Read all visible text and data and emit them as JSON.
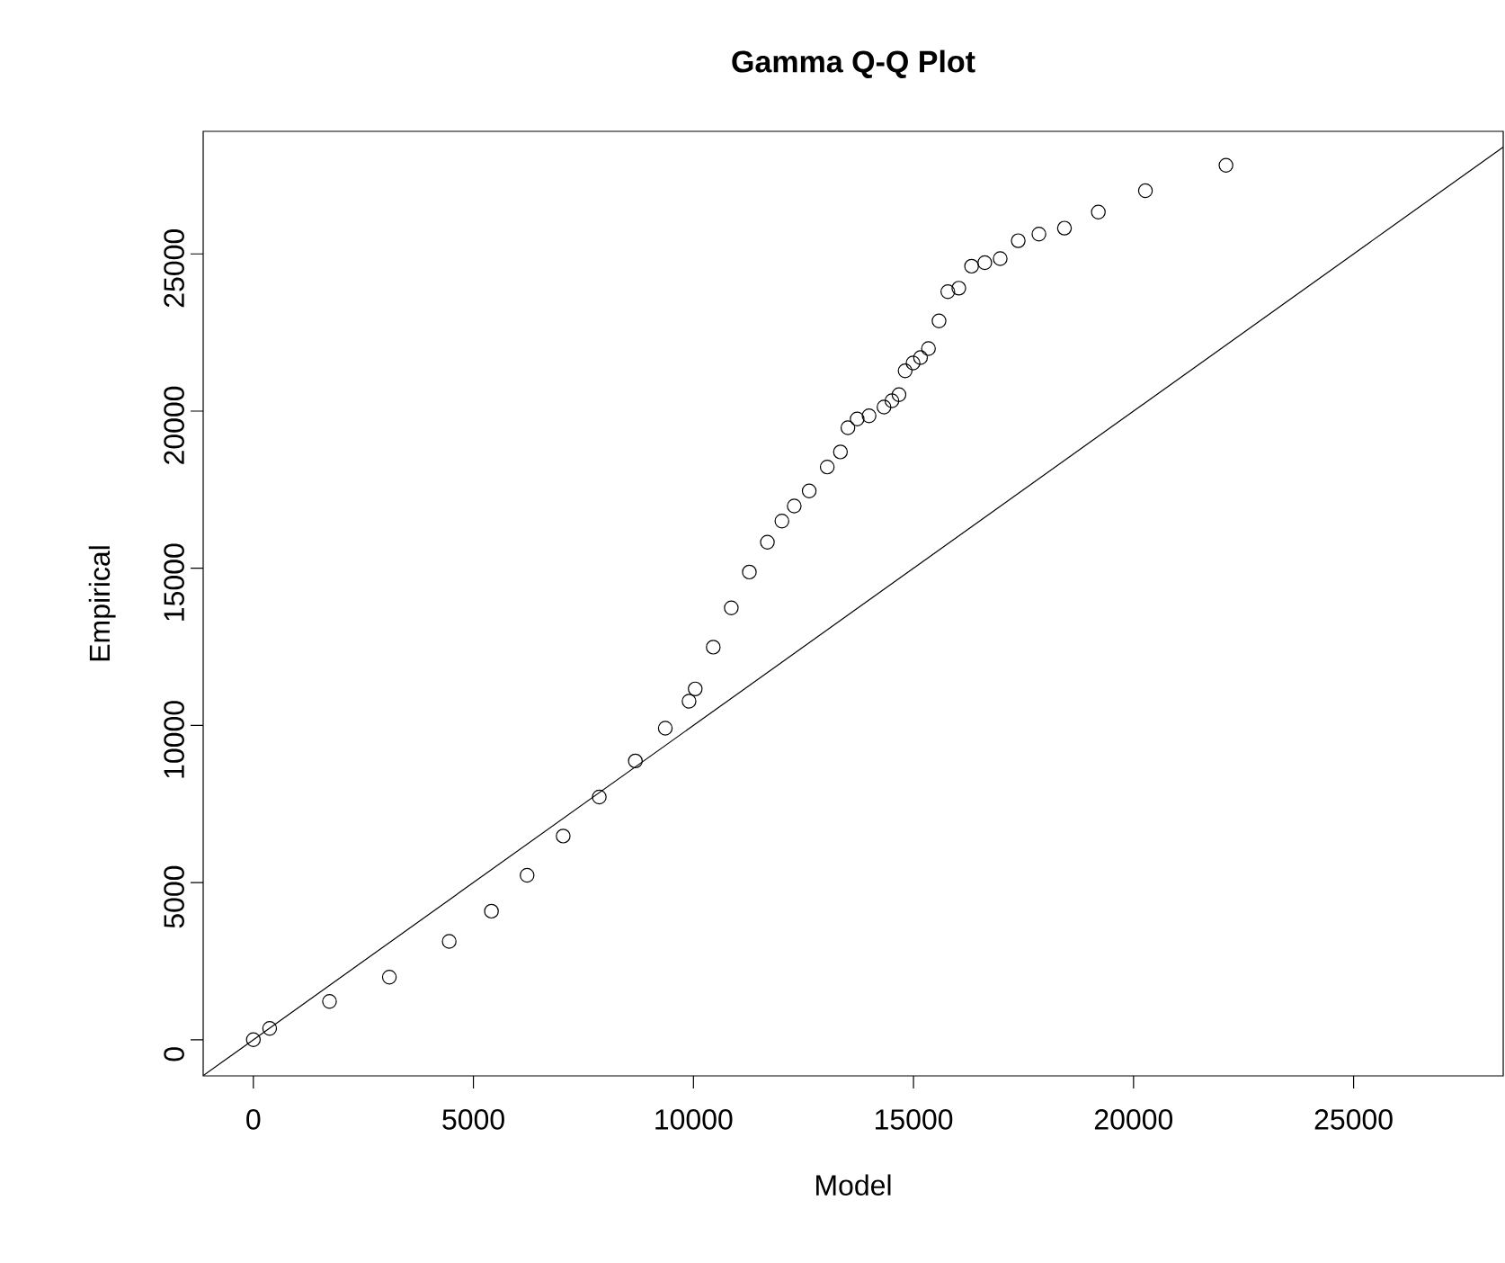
{
  "chart_data": {
    "type": "scatter",
    "title": "Gamma Q-Q Plot",
    "xlabel": "Model",
    "ylabel": "Empirical",
    "xlim": [
      -1140,
      28400
    ],
    "ylim": [
      -1150,
      28900
    ],
    "xticks": [
      0,
      5000,
      10000,
      15000,
      20000,
      25000
    ],
    "yticks": [
      0,
      5000,
      10000,
      15000,
      20000,
      25000
    ],
    "marker": "circle",
    "series": [
      {
        "color": "#000000",
        "x": [
          0,
          370,
          1730,
          3090,
          4450,
          5410,
          6220,
          7040,
          7860,
          8680,
          9360,
          9900,
          10040,
          10450,
          10860,
          11270,
          11680,
          12010,
          12290,
          12630,
          13040,
          13340,
          13510,
          13720,
          13990,
          14330,
          14510,
          14670,
          14810,
          14990,
          15160,
          15340,
          15580,
          15780,
          16030,
          16320,
          16620,
          16970,
          17380,
          17850,
          18430,
          19200,
          20270,
          22100
        ],
        "values": [
          0,
          360,
          1220,
          1990,
          3130,
          4090,
          5230,
          6480,
          7720,
          8870,
          9910,
          10770,
          11160,
          12490,
          13740,
          14880,
          15830,
          16500,
          16980,
          17460,
          18220,
          18700,
          19470,
          19750,
          19850,
          20130,
          20330,
          20520,
          21280,
          21530,
          21700,
          21990,
          22870,
          23800,
          23910,
          24610,
          24720,
          24850,
          25420,
          25630,
          25820,
          26330,
          27010,
          27820
        ]
      },
      {
        "type": "line",
        "color": "#000000",
        "marker": "none",
        "line_style": "solid",
        "x": [
          -1140,
          28400
        ],
        "values": [
          -1140,
          28400
        ]
      }
    ]
  }
}
